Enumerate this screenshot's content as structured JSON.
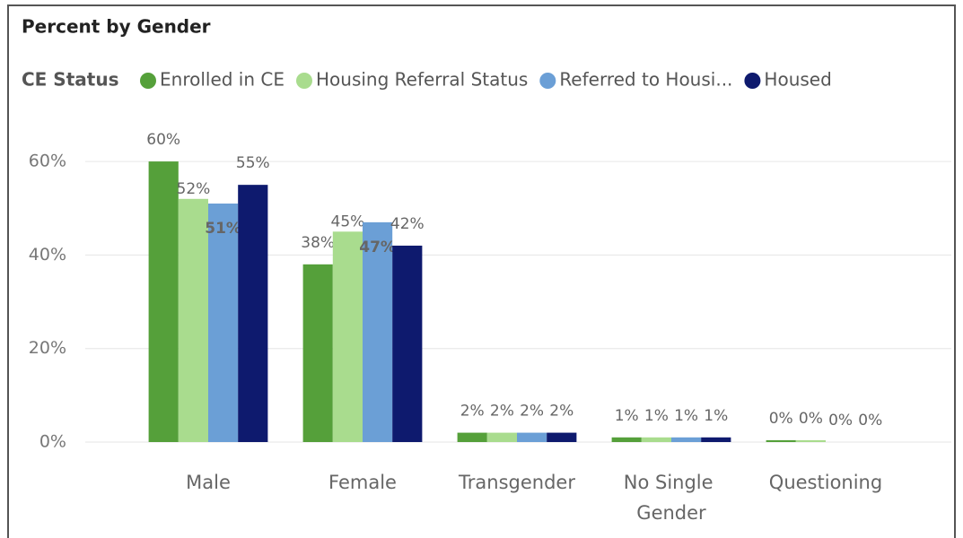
{
  "chart_data": {
    "type": "bar",
    "title": "Percent by Gender",
    "legend_title": "CE Status",
    "categories": [
      "Male",
      "Female",
      "Transgender",
      "No Single Gender",
      "Questioning"
    ],
    "series": [
      {
        "name": "Enrolled in CE",
        "color": "#55a03a",
        "values": [
          60,
          38,
          2,
          1,
          0.4
        ],
        "value_labels": [
          "60%",
          "38%",
          "2%",
          "1%",
          "0%"
        ]
      },
      {
        "name": "Housing Referral Status",
        "color": "#a9dc8e",
        "values": [
          52,
          45,
          2,
          1,
          0.4
        ],
        "value_labels": [
          "52%",
          "45%",
          "2%",
          "1%",
          "0%"
        ]
      },
      {
        "name": "Referred to Housi...",
        "color": "#6b9fd6",
        "values": [
          51,
          47,
          2,
          1,
          0
        ],
        "value_labels": [
          "51%",
          "47%",
          "2%",
          "1%",
          "0%"
        ]
      },
      {
        "name": "Housed",
        "color": "#0e1a6e",
        "values": [
          55,
          42,
          2,
          1,
          0
        ],
        "value_labels": [
          "55%",
          "42%",
          "2%",
          "1%",
          "0%"
        ]
      }
    ],
    "ylim": [
      0,
      65
    ],
    "yticks": [
      {
        "value": 0,
        "label": "0%"
      },
      {
        "value": 20,
        "label": "20%"
      },
      {
        "value": 40,
        "label": "40%"
      },
      {
        "value": 60,
        "label": "60%"
      }
    ],
    "grid": true,
    "legend": "top-left"
  }
}
